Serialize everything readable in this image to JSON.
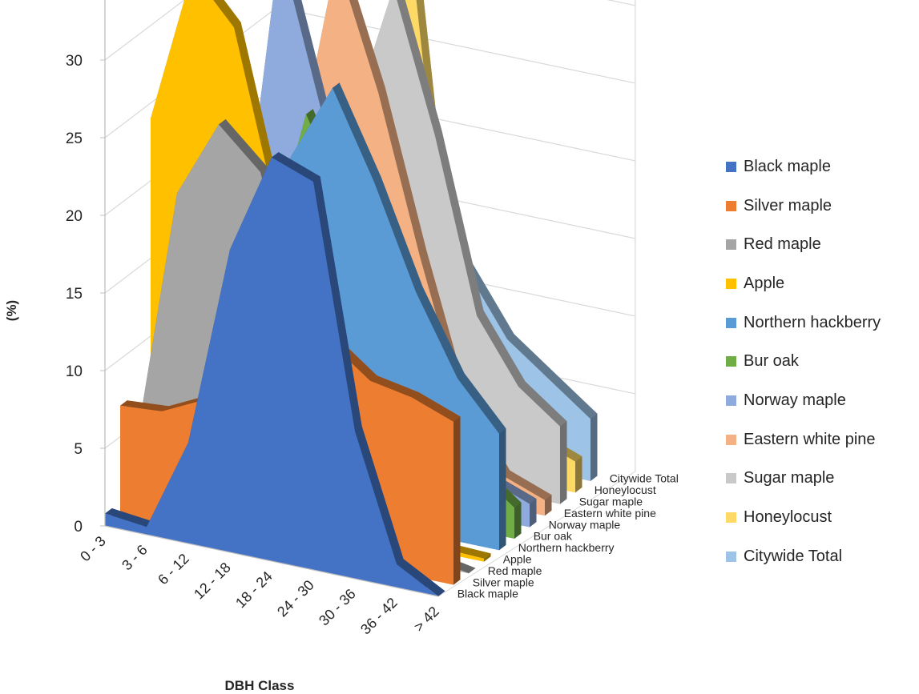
{
  "chart_data": {
    "type": "area",
    "title": "",
    "xlabel": "DBH Class",
    "ylabel": "(%)",
    "ylim": [
      0,
      35
    ],
    "yticks": [
      "0",
      "5",
      "10",
      "15",
      "20",
      "25",
      "30",
      "35"
    ],
    "grid": true,
    "legend_position": "right",
    "categories": [
      "0 - 3",
      "3 - 6",
      "6 - 12",
      "12 - 18",
      "18 - 24",
      "24 - 30",
      "30 - 36",
      "36 - 42",
      "> 42"
    ],
    "series": [
      {
        "name": "Black maple",
        "color": "#4472c4",
        "values": [
          0.8,
          0.5,
          6.5,
          19.5,
          26.0,
          25.0,
          9.5,
          1.5,
          0.0
        ]
      },
      {
        "name": "Silver maple",
        "color": "#ed7d31",
        "values": [
          7.0,
          7.2,
          8.5,
          11.0,
          13.0,
          14.0,
          12.0,
          11.5,
          10.5
        ]
      },
      {
        "name": "Red maple",
        "color": "#a5a5a5",
        "values": [
          3.5,
          20.5,
          25.5,
          23.0,
          13.0,
          10.0,
          2.5,
          0.5,
          0.0
        ]
      },
      {
        "name": "Apple",
        "color": "#ffc000",
        "values": [
          24.0,
          34.0,
          31.0,
          20.0,
          8.0,
          2.0,
          0.5,
          0.3,
          0.2
        ]
      },
      {
        "name": "Northern hackberry",
        "color": "#5b9bd5",
        "values": [
          2.0,
          6.0,
          14.0,
          22.5,
          27.5,
          22.0,
          15.5,
          10.5,
          7.5
        ]
      },
      {
        "name": "Bur oak",
        "color": "#70ad47",
        "values": [
          1.0,
          5.0,
          14.0,
          24.5,
          19.0,
          12.0,
          8.0,
          4.0,
          2.0
        ]
      },
      {
        "name": "Norway maple",
        "color": "#8faadc",
        "values": [
          3.0,
          12.0,
          34.0,
          24.0,
          15.5,
          8.0,
          5.0,
          2.5,
          1.5
        ]
      },
      {
        "name": "Eastern white pine",
        "color": "#f4b183",
        "values": [
          2.0,
          9.0,
          19.0,
          33.0,
          25.0,
          15.0,
          6.0,
          2.0,
          1.0
        ]
      },
      {
        "name": "Sugar maple",
        "color": "#c9c9c9",
        "values": [
          3.0,
          8.0,
          14.0,
          22.0,
          31.0,
          22.0,
          11.0,
          7.0,
          5.0
        ]
      },
      {
        "name": "Honeylocust",
        "color": "#ffd966",
        "values": [
          1.5,
          5.0,
          12.0,
          21.0,
          34.0,
          10.0,
          5.0,
          3.0,
          2.0
        ]
      },
      {
        "name": "Citywide Total",
        "color": "#9dc3e6",
        "values": [
          10.0,
          14.0,
          17.0,
          19.0,
          17.0,
          12.0,
          8.0,
          6.0,
          4.0
        ]
      }
    ],
    "depth_labels": [
      "Black maple",
      "Silver maple",
      "Red maple",
      "Apple",
      "Northern hackberry",
      "Bur oak",
      "Norway maple",
      "Eastern white pine",
      "Sugar maple",
      "Honeylocust",
      "Citywide Total"
    ]
  }
}
